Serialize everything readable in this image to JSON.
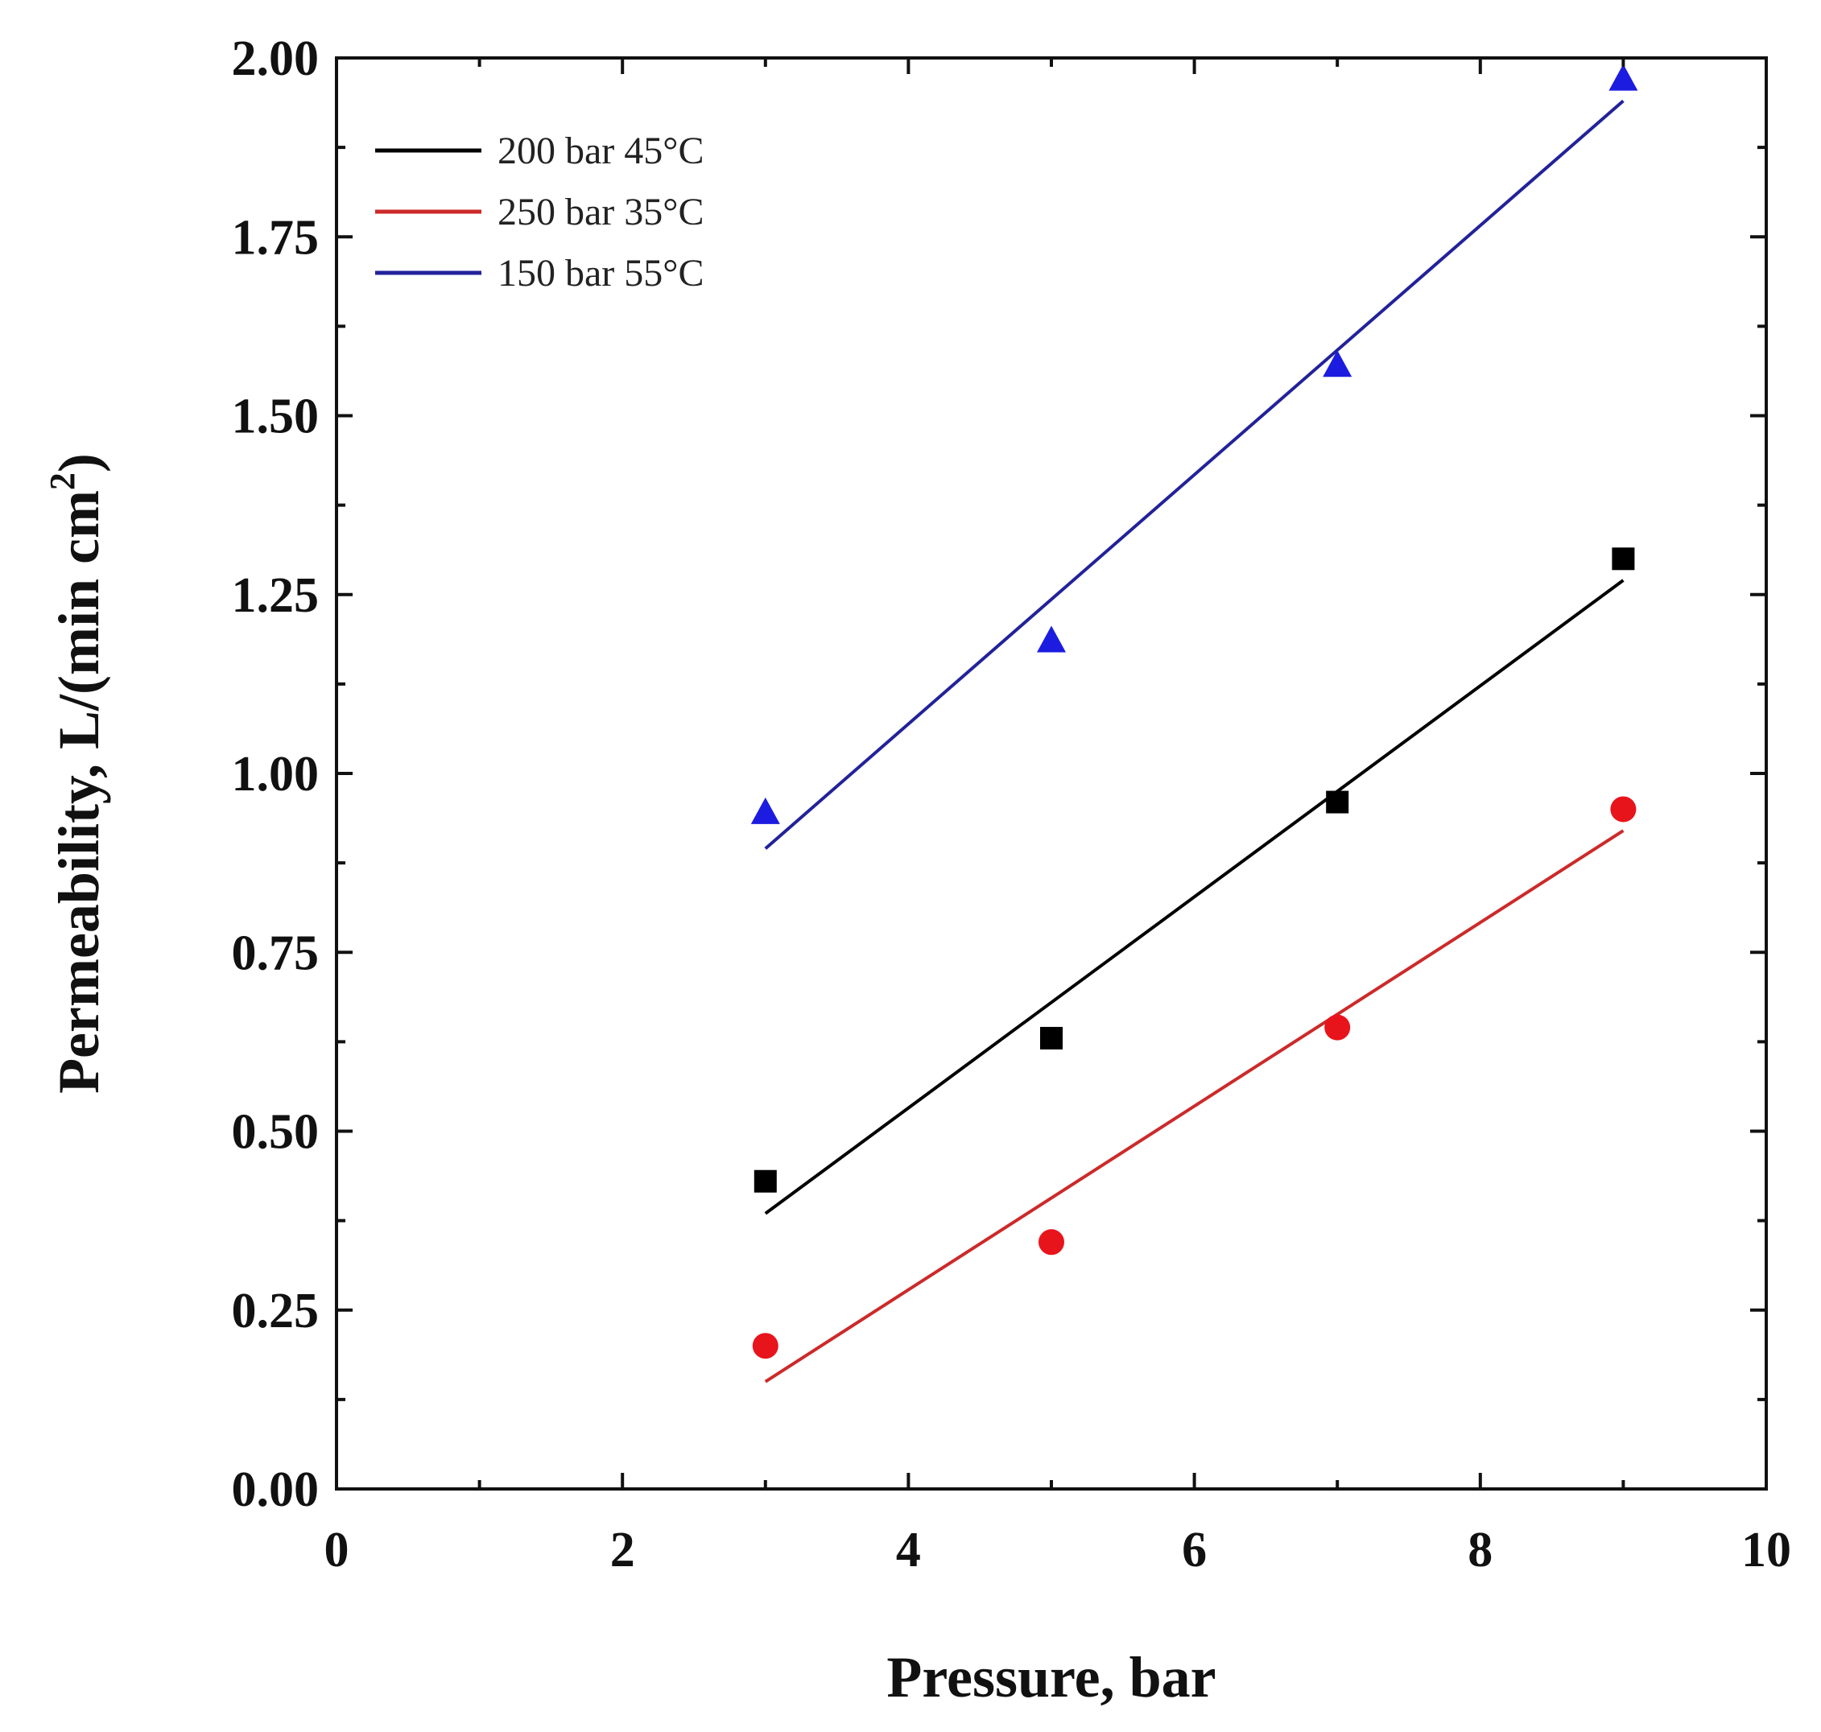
{
  "chart_data": {
    "type": "scatter",
    "title": "",
    "xlabel": "Pressure, bar",
    "ylabel_main": "Permeability, L/(min cm",
    "ylabel_sup": "2",
    "ylabel_close": ")",
    "xlim": [
      0,
      10
    ],
    "ylim": [
      0,
      2
    ],
    "x_major_ticks": [
      0,
      2,
      4,
      6,
      8,
      10
    ],
    "x_tick_labels": [
      "0",
      "2",
      "4",
      "6",
      "8",
      "10"
    ],
    "x_minor_ticks": [
      1,
      3,
      5,
      7,
      9
    ],
    "y_major_ticks": [
      0,
      0.25,
      0.5,
      0.75,
      1.0,
      1.25,
      1.5,
      1.75,
      2.0
    ],
    "y_tick_labels": [
      "0.00",
      "0.25",
      "0.50",
      "0.75",
      "1.00",
      "1.25",
      "1.50",
      "1.75",
      "2.00"
    ],
    "y_minor_ticks": [
      0.125,
      0.375,
      0.625,
      0.875,
      1.125,
      1.375,
      1.625,
      1.875
    ],
    "grid": false,
    "legend_position": "top-left",
    "series": [
      {
        "name": "200 bar 45°C",
        "color": "#000000",
        "marker": "square",
        "x": [
          3,
          5,
          7,
          9
        ],
        "y": [
          0.43,
          0.63,
          0.96,
          1.3
        ],
        "fit": {
          "x": [
            3,
            9
          ],
          "y": [
            0.385,
            1.27
          ]
        }
      },
      {
        "name": "250 bar 35°C",
        "color": "#e8141c",
        "line_color": "#cc2a2a",
        "marker": "circle",
        "x": [
          3,
          5,
          7,
          9
        ],
        "y": [
          0.2,
          0.345,
          0.645,
          0.95
        ],
        "fit": {
          "x": [
            3,
            9
          ],
          "y": [
            0.15,
            0.92
          ]
        }
      },
      {
        "name": "150 bar 55°C",
        "color": "#1c1ce0",
        "line_color": "#22229a",
        "marker": "triangle",
        "x": [
          3,
          5,
          7,
          9
        ],
        "y": [
          0.945,
          1.185,
          1.57,
          1.97
        ],
        "fit": {
          "x": [
            3,
            9
          ],
          "y": [
            0.895,
            1.94
          ]
        }
      }
    ]
  }
}
